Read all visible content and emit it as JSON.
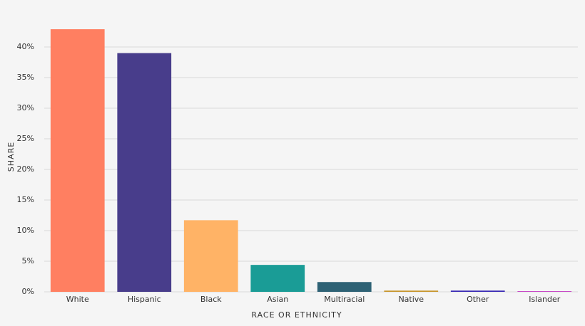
{
  "chart_data": {
    "type": "bar",
    "x_label": "RACE OR ETHNICITY",
    "y_label": "SHARE",
    "categories": [
      "White",
      "Hispanic",
      "Black",
      "Asian",
      "Multiracial",
      "Native",
      "Other",
      "Islander"
    ],
    "values": [
      42.9,
      39.0,
      11.7,
      4.4,
      1.6,
      0.2,
      0.2,
      0.1
    ],
    "colors": [
      "#ff7f61",
      "#483d8b",
      "#ffb366",
      "#1a9c96",
      "#2e6275",
      "#c8962d",
      "#3a2bb5",
      "#c030c0"
    ],
    "ylim": [
      0,
      45
    ],
    "yticks": [
      {
        "value": 0,
        "label": "0%"
      },
      {
        "value": 5,
        "label": "5%"
      },
      {
        "value": 10,
        "label": "10%"
      },
      {
        "value": 15,
        "label": "15%"
      },
      {
        "value": 20,
        "label": "20%"
      },
      {
        "value": 25,
        "label": "25%"
      },
      {
        "value": 30,
        "label": "30%"
      },
      {
        "value": 35,
        "label": "35%"
      },
      {
        "value": 40,
        "label": "40%"
      }
    ],
    "grid": true
  }
}
